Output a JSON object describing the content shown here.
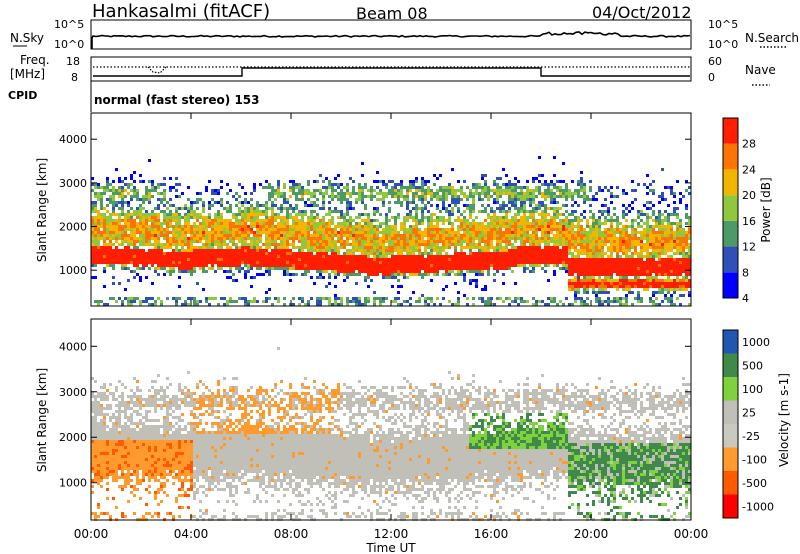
{
  "header": {
    "title": "Hankasalmi (fitACF)",
    "beam": "Beam 08",
    "date": "04/Oct/2012"
  },
  "nsky_panel": {
    "left_label": "N.Sky",
    "left_ticks": [
      "10^5",
      "10^0"
    ],
    "right_ticks": [
      "10^5",
      "10^0"
    ],
    "right_label": "N.Search"
  },
  "freq_panel": {
    "left_label_1": "Freq.",
    "left_label_2": "[MHz]",
    "left_ticks": [
      "18",
      "8"
    ],
    "right_ticks": [
      "60",
      "0"
    ],
    "right_label": "Nave",
    "cpid_label": "CPID",
    "mode_text": "normal (fast stereo) 153"
  },
  "colors": {
    "power": [
      "#0000ff",
      "#2e50b8",
      "#4e9a67",
      "#8fc73e",
      "#f2b600",
      "#ff7400",
      "#ff1e00"
    ],
    "velocity": [
      "#ff0000",
      "#ff5a00",
      "#ff9a2e",
      "#c9c9c1",
      "#c0c0b8",
      "#7fd13d",
      "#3f8a4a",
      "#2058b0"
    ]
  },
  "chart_data": [
    {
      "type": "heatmap",
      "name": "power",
      "ylabel": "Slant Range [km]",
      "yticks": [
        "4000",
        "3000",
        "2000",
        "1000"
      ],
      "ylim": [
        180,
        4600
      ],
      "xlim_hours": [
        0,
        24
      ],
      "colorbar_label": "Power [dB]",
      "colorbar_ticks": [
        "28",
        "24",
        "20",
        "16",
        "12",
        "8",
        "4"
      ],
      "colorbar_levels": [
        0,
        4,
        8,
        12,
        16,
        20,
        24,
        28
      ]
    },
    {
      "type": "heatmap",
      "name": "velocity",
      "ylabel": "Slant Range [km]",
      "yticks": [
        "4000",
        "3000",
        "2000",
        "1000"
      ],
      "ylim": [
        180,
        4600
      ],
      "xlim_hours": [
        0,
        24
      ],
      "colorbar_label": "Velocity [m s-1]",
      "colorbar_ticks": [
        "1000",
        "500",
        "100",
        "25",
        "-25",
        "-100",
        "-500",
        "-1000"
      ]
    }
  ],
  "xaxis": {
    "ticks": [
      "00:00",
      "04:00",
      "08:00",
      "12:00",
      "16:00",
      "20:00",
      "00:00"
    ],
    "label": "Time UT"
  }
}
